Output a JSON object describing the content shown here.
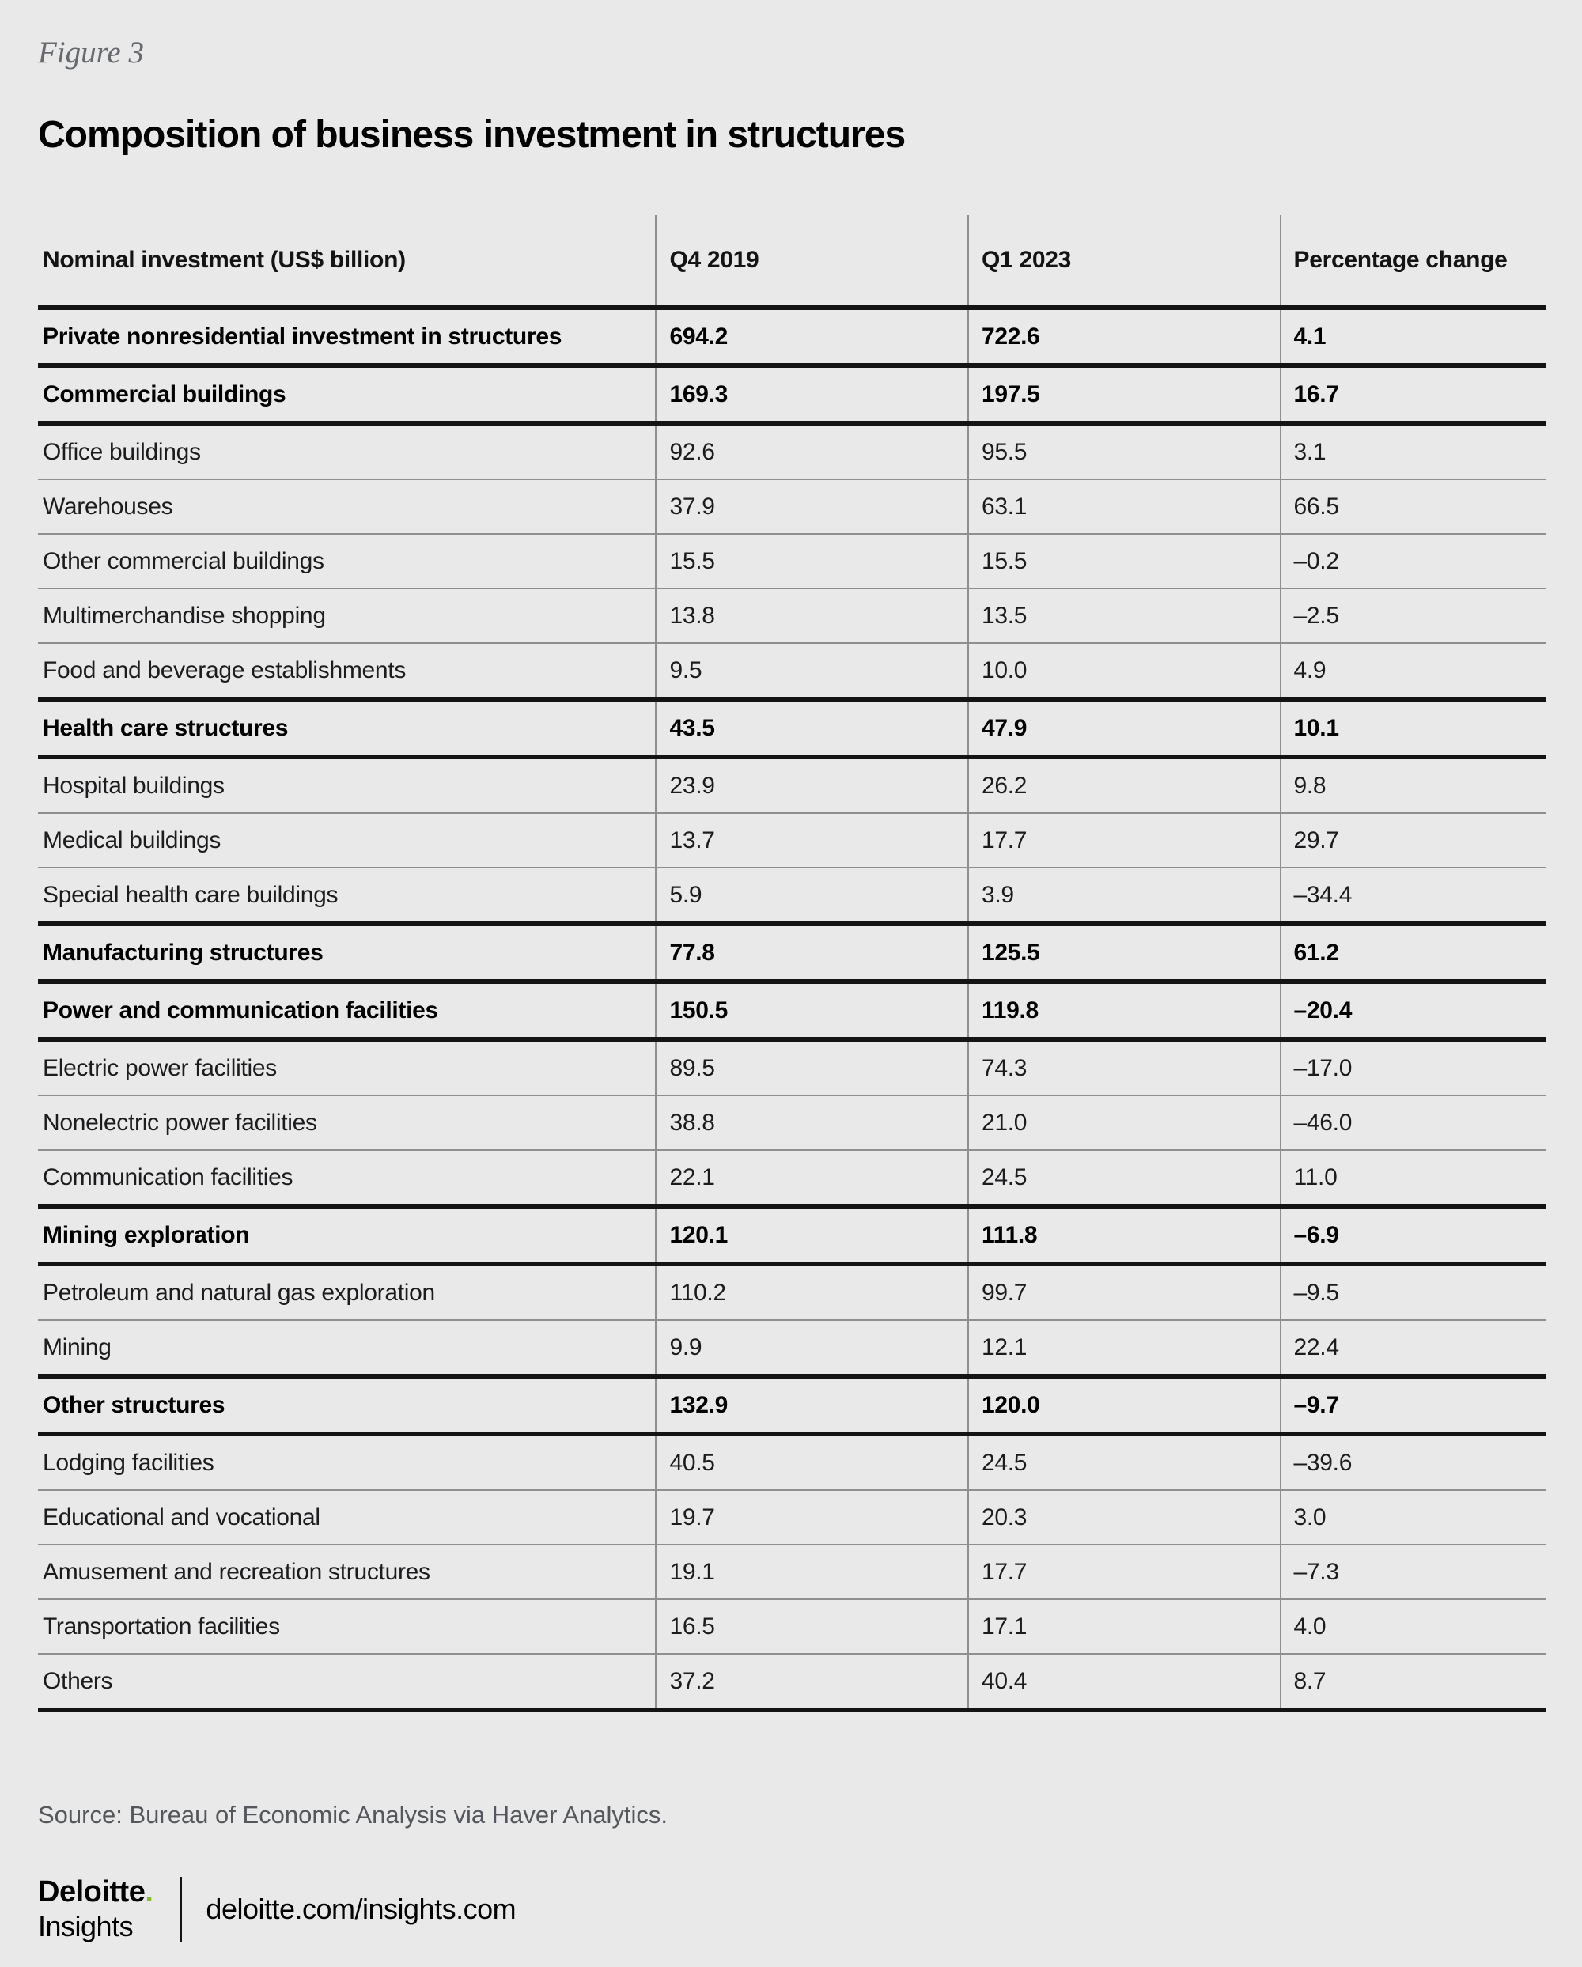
{
  "figure_label": "Figure 3",
  "title": "Composition of business investment in structures",
  "source": "Source: Bureau of Economic Analysis via Haver Analytics.",
  "footer": {
    "brand_name": "Deloitte",
    "brand_dot": ".",
    "brand_sub": "Insights",
    "link": "deloitte.com/insights.com"
  },
  "colors": {
    "background": "#E9E9EA",
    "rule_black": "#141414",
    "rule_gray": "#8F8F8F",
    "text_gray": "#54575B",
    "brand_green": "#86BC25"
  },
  "chart_data": {
    "type": "table",
    "title": "Composition of business investment in structures",
    "columns": [
      "Nominal investment (US$ billion)",
      "Q4 2019",
      "Q1 2023",
      "Percentage change"
    ],
    "rows": [
      {
        "label": "Private nonresidential investment in structures",
        "values": [
          694.2,
          722.6,
          4.1
        ],
        "group": true,
        "rule_after": "thick"
      },
      {
        "label": "Commercial buildings",
        "values": [
          169.3,
          197.5,
          16.7
        ],
        "group": true,
        "rule_after": "thick"
      },
      {
        "label": "Office buildings",
        "values": [
          92.6,
          95.5,
          3.1
        ],
        "group": false,
        "rule_after": "thin"
      },
      {
        "label": "Warehouses",
        "values": [
          37.9,
          63.1,
          66.5
        ],
        "group": false,
        "rule_after": "thin"
      },
      {
        "label": "Other commercial buildings",
        "values": [
          15.5,
          15.5,
          -0.2
        ],
        "group": false,
        "rule_after": "thin"
      },
      {
        "label": "Multimerchandise shopping",
        "values": [
          13.8,
          13.5,
          -2.5
        ],
        "group": false,
        "rule_after": "thin"
      },
      {
        "label": "Food and beverage establishments",
        "values": [
          9.5,
          10.0,
          4.9
        ],
        "group": false,
        "rule_after": "thick"
      },
      {
        "label": "Health care structures",
        "values": [
          43.5,
          47.9,
          10.1
        ],
        "group": true,
        "rule_after": "thick"
      },
      {
        "label": "Hospital buildings",
        "values": [
          23.9,
          26.2,
          9.8
        ],
        "group": false,
        "rule_after": "thin"
      },
      {
        "label": "Medical buildings",
        "values": [
          13.7,
          17.7,
          29.7
        ],
        "group": false,
        "rule_after": "thin"
      },
      {
        "label": "Special health care buildings",
        "values": [
          5.9,
          3.9,
          -34.4
        ],
        "group": false,
        "rule_after": "thick"
      },
      {
        "label": "Manufacturing structures",
        "values": [
          77.8,
          125.5,
          61.2
        ],
        "group": true,
        "rule_after": "thick"
      },
      {
        "label": "Power and communication facilities",
        "values": [
          150.5,
          119.8,
          -20.4
        ],
        "group": true,
        "rule_after": "thick"
      },
      {
        "label": "Electric power facilities",
        "values": [
          89.5,
          74.3,
          -17.0
        ],
        "group": false,
        "rule_after": "thin"
      },
      {
        "label": "Nonelectric power facilities",
        "values": [
          38.8,
          21.0,
          -46.0
        ],
        "group": false,
        "rule_after": "thin"
      },
      {
        "label": "Communication facilities",
        "values": [
          22.1,
          24.5,
          11.0
        ],
        "group": false,
        "rule_after": "thick"
      },
      {
        "label": "Mining exploration",
        "values": [
          120.1,
          111.8,
          -6.9
        ],
        "group": true,
        "rule_after": "thick"
      },
      {
        "label": "Petroleum and natural gas exploration",
        "values": [
          110.2,
          99.7,
          -9.5
        ],
        "group": false,
        "rule_after": "thin"
      },
      {
        "label": "Mining",
        "values": [
          9.9,
          12.1,
          22.4
        ],
        "group": false,
        "rule_after": "thick"
      },
      {
        "label": "Other structures",
        "values": [
          132.9,
          120.0,
          -9.7
        ],
        "group": true,
        "rule_after": "thick"
      },
      {
        "label": "Lodging facilities",
        "values": [
          40.5,
          24.5,
          -39.6
        ],
        "group": false,
        "rule_after": "thin"
      },
      {
        "label": "Educational and vocational",
        "values": [
          19.7,
          20.3,
          3.0
        ],
        "group": false,
        "rule_after": "thin"
      },
      {
        "label": "Amusement and recreation structures",
        "values": [
          19.1,
          17.7,
          -7.3
        ],
        "group": false,
        "rule_after": "thin"
      },
      {
        "label": "Transportation facilities",
        "values": [
          16.5,
          17.1,
          4.0
        ],
        "group": false,
        "rule_after": "thin"
      },
      {
        "label": "Others",
        "values": [
          37.2,
          40.4,
          8.7
        ],
        "group": false,
        "rule_after": "thick"
      }
    ]
  }
}
